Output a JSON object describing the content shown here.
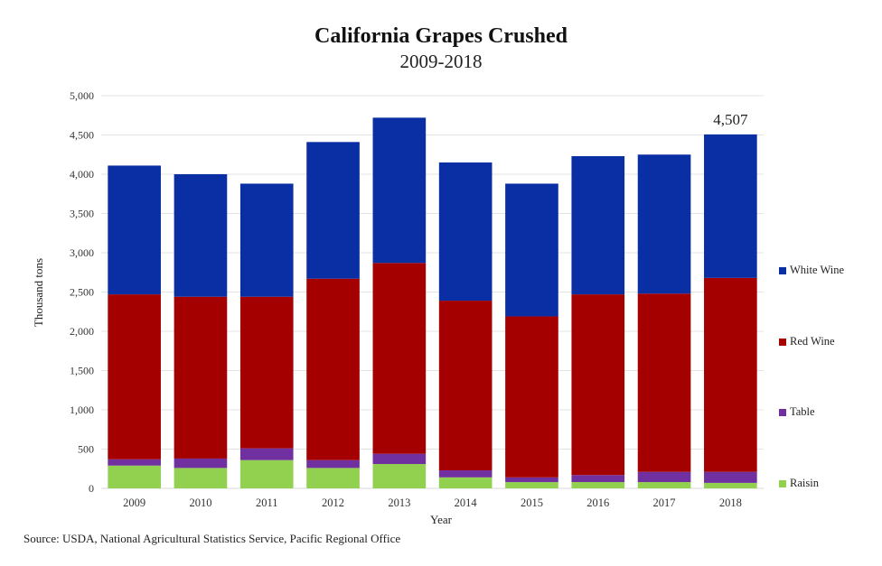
{
  "chart_data": {
    "type": "bar",
    "stacked": true,
    "title": "California Grapes Crushed",
    "subtitle": "2009-2018",
    "xlabel": "Year",
    "ylabel": "Thousand tons",
    "ylim": [
      0,
      5000
    ],
    "yticks": [
      0,
      500,
      1000,
      1500,
      2000,
      2500,
      3000,
      3500,
      4000,
      4500,
      5000
    ],
    "ytick_labels": [
      "0",
      "500",
      "1,000",
      "1,500",
      "2,000",
      "2,500",
      "3,000",
      "3,500",
      "4,000",
      "4,500",
      "5,000"
    ],
    "grid": true,
    "legend_position": "right",
    "categories": [
      "2009",
      "2010",
      "2011",
      "2012",
      "2013",
      "2014",
      "2015",
      "2016",
      "2017",
      "2018"
    ],
    "series": [
      {
        "name": "Raisin",
        "color": "#92d050",
        "values": [
          290,
          260,
          360,
          260,
          310,
          140,
          80,
          80,
          80,
          70
        ]
      },
      {
        "name": "Table",
        "color": "#7030a0",
        "values": [
          80,
          120,
          150,
          100,
          130,
          90,
          60,
          90,
          130,
          140
        ]
      },
      {
        "name": "Red Wine",
        "color": "#a50000",
        "values": [
          2100,
          2060,
          1930,
          2310,
          2430,
          2160,
          2050,
          2300,
          2270,
          2470
        ]
      },
      {
        "name": "White Wine",
        "color": "#0a2ea4",
        "values": [
          1640,
          1560,
          1440,
          1740,
          1850,
          1760,
          1690,
          1760,
          1770,
          1827
        ]
      }
    ],
    "annotations": [
      {
        "category": "2018",
        "text": "4,507"
      }
    ]
  },
  "source": "Source: USDA, National Agricultural Statistics Service, Pacific Regional Office",
  "legend": [
    {
      "label": "White Wine",
      "color": "#0a2ea4"
    },
    {
      "label": "Red Wine",
      "color": "#a50000"
    },
    {
      "label": "Table",
      "color": "#7030a0"
    },
    {
      "label": "Raisin",
      "color": "#92d050"
    }
  ]
}
